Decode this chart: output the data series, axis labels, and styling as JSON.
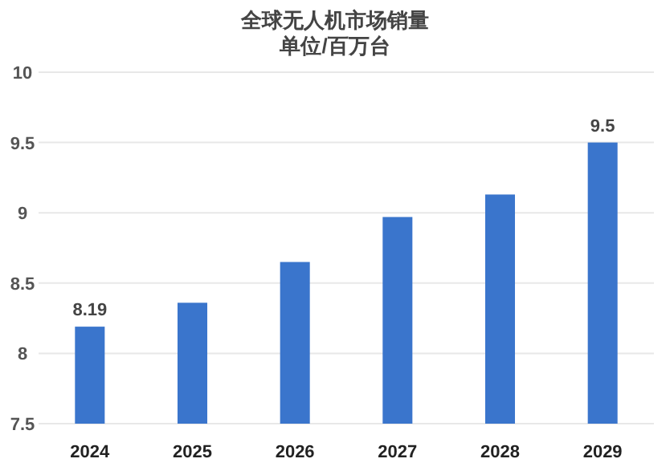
{
  "chart_data": {
    "type": "bar",
    "title": "全球无人机市场销量",
    "subtitle": "单位/百万台",
    "categories": [
      "2024",
      "2025",
      "2026",
      "2027",
      "2028",
      "2029"
    ],
    "values": [
      8.19,
      8.36,
      8.65,
      8.97,
      9.13,
      9.5
    ],
    "value_labels": [
      "8.19",
      null,
      null,
      null,
      null,
      "9.5"
    ],
    "color": "#3a75cc",
    "ylim": [
      7.5,
      10
    ],
    "yticks": [
      7.5,
      8,
      8.5,
      9,
      9.5,
      10
    ],
    "grid": "y"
  }
}
